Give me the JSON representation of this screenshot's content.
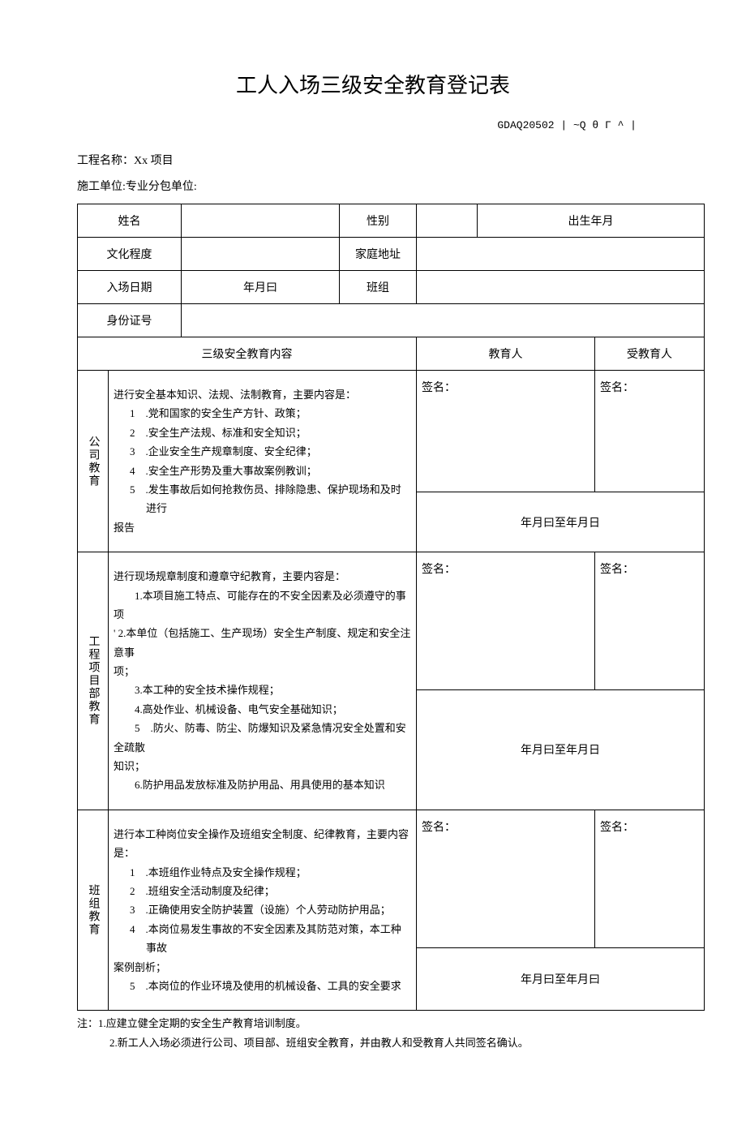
{
  "title": "工人入场三级安全教育登记表",
  "code": "GDAQ20502 | ~Q θ Γ ^ |",
  "project_label": "工程名称：",
  "project_value": "Xx 项目",
  "unit_label": "施工单位:",
  "sub_unit_label": "专业分包单位:",
  "labels": {
    "name": "姓名",
    "gender": "性别",
    "birth": "出生年月",
    "edu": "文化程度",
    "address": "家庭地址",
    "entry_date": "入场日期",
    "date_val": "年月曰",
    "team": "班组",
    "id_no": "身份证号",
    "edu_content": "三级安全教育内容",
    "educator": "教育人",
    "trainee": "受教育人",
    "sign": "签名：",
    "date_range": "年月曰至年月日",
    "date_range2": "年月曰至年月曰"
  },
  "section1": {
    "header": "公司教育",
    "intro": "进行安全基本知识、法规、法制教育，主要内容是：",
    "items": [
      "1　.党和国家的安全生产方针、政策；",
      "2　.安全生产法规、标准和安全知识；",
      "3　.企业安全生产规章制度、安全纪律；",
      "4　.安全生产形势及重大事故案例教训；",
      "5　.发生事故后如何抢救伤员、排除隐患、保护现场和及时进行"
    ],
    "tail": "报告"
  },
  "section2": {
    "header": "工程项目部教育",
    "intro": "进行现场规章制度和遵章守纪教育，主要内容是：",
    "items": [
      "　　1.本项目施工特点、可能存在的不安全因素及必须遵守的事项",
      "' 2.本单位（包括施工、生产现场）安全生产制度、规定和安全注意事",
      "项；",
      "　　3.本工种的安全技术操作规程；",
      "　　4.高处作业、机械设备、电气安全基础知识；",
      "　　5　.防火、防毒、防尘、防爆知识及紧急情况安全处置和安全疏散",
      "知识；"
    ],
    "tail": "　　6.防护用品发放标准及防护用品、用具使用的基本知识"
  },
  "section3": {
    "header": "班组教育",
    "intro": "进行本工种岗位安全操作及班组安全制度、纪律教育，主要内容是：",
    "items": [
      "1　.本班组作业特点及安全操作规程；",
      "2　.班组安全活动制度及纪律；",
      "3　.正确使用安全防护装置（设施）个人劳动防护用品；",
      "4　.本岗位易发生事故的不安全因素及其防范对策，本工种事故"
    ],
    "mid": "案例剖析；",
    "tail": "5　.本岗位的作业环境及使用的机械设备、工具的安全要求"
  },
  "notes": {
    "n1": "注：1.应建立健全定期的安全生产教育培训制度。",
    "n2": "2.新工人入场必须进行公司、项目部、班组安全教育，并由教人和受教育人共同签名确认。"
  },
  "col_widths": [
    "38px",
    "90px",
    "195px",
    "95px",
    "75px",
    "145px",
    "135px"
  ]
}
